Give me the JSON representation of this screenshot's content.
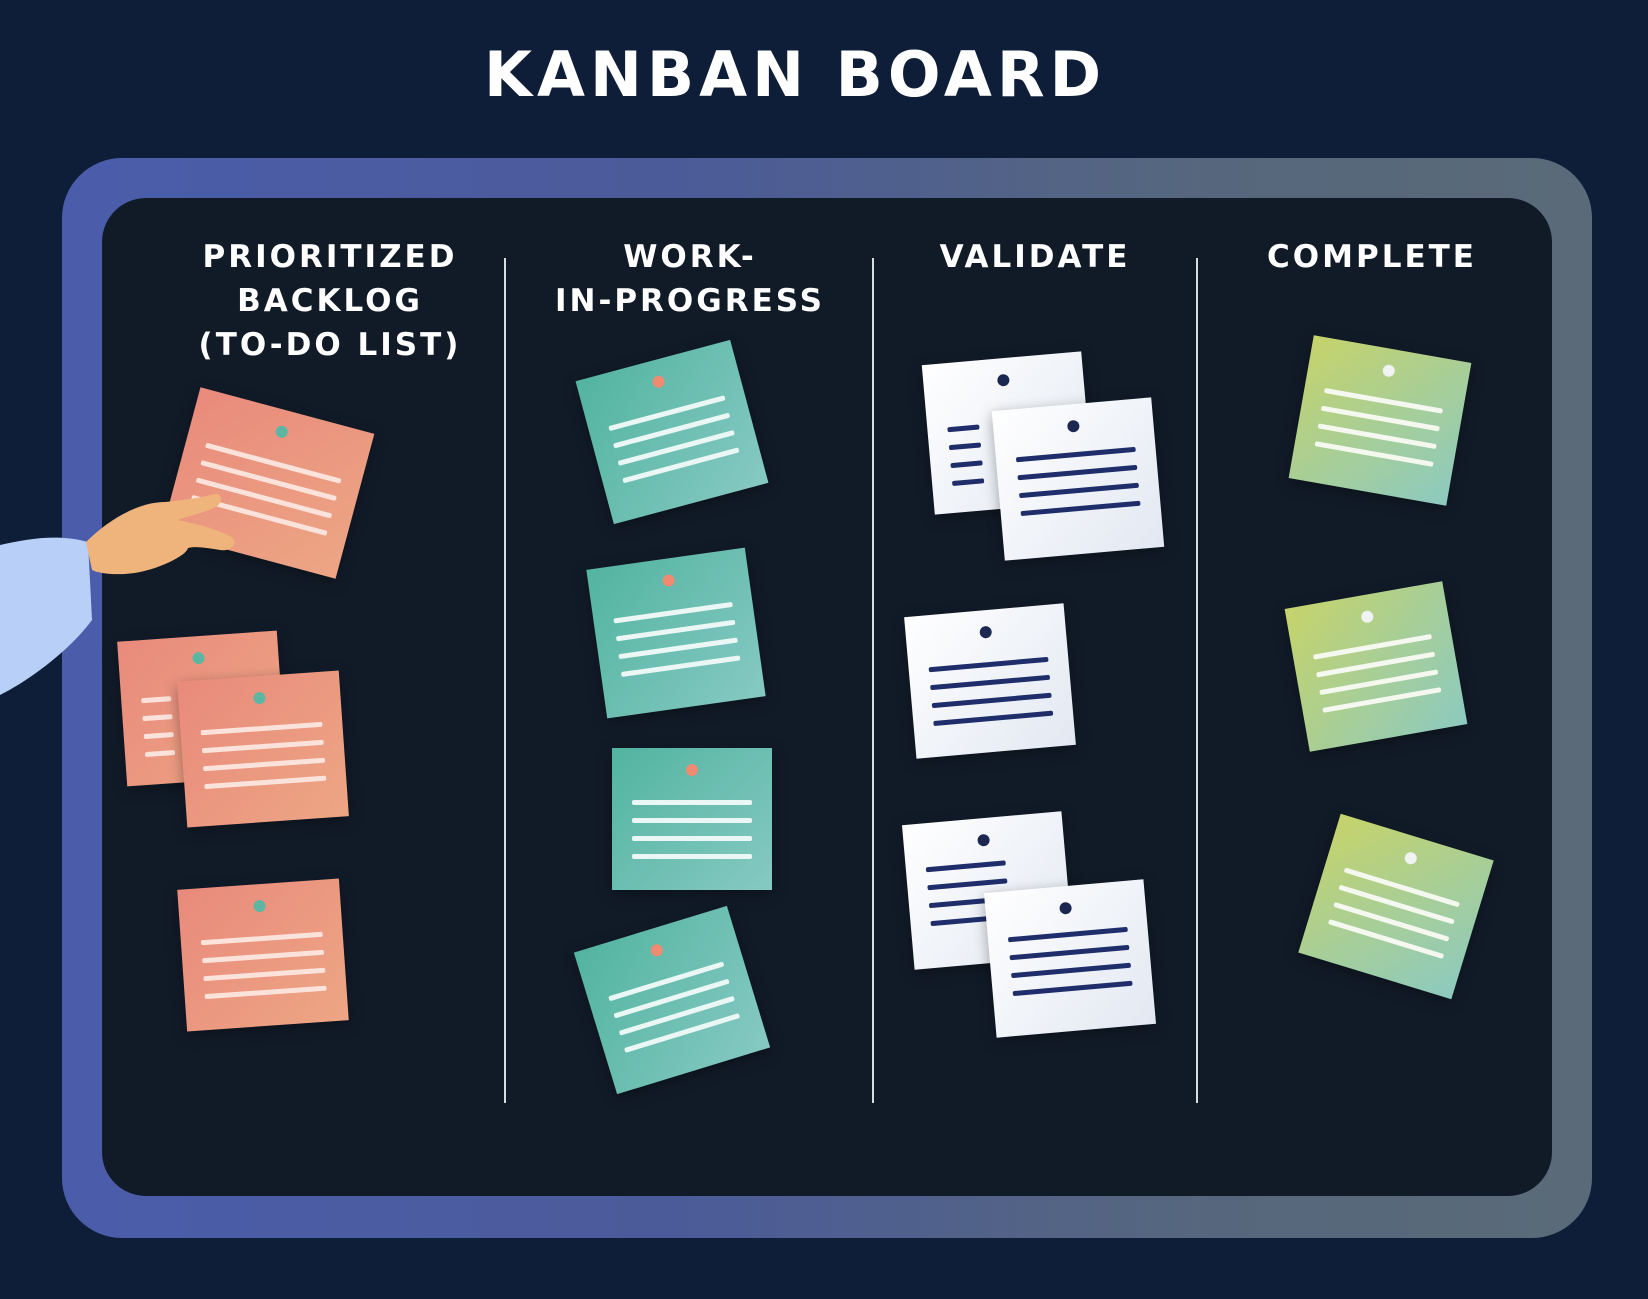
{
  "title": "KANBAN BOARD",
  "columns": [
    {
      "id": "backlog",
      "title": "PRIORITIZED\nBACKLOG\n(TO-DO LIST)"
    },
    {
      "id": "wip",
      "title": "WORK-\nIN-PROGRESS"
    },
    {
      "id": "validate",
      "title": "VALIDATE"
    },
    {
      "id": "complete",
      "title": "COMPLETE"
    }
  ],
  "colors": {
    "background": "#0e1e38",
    "board": "#111b28",
    "backlog_note": "#e98a7c",
    "wip_note": "#52b4a0",
    "validate_note": "#eef1f7",
    "complete_note": "#b8d07a"
  },
  "icons": [
    "hand-icon",
    "pin-icon"
  ]
}
